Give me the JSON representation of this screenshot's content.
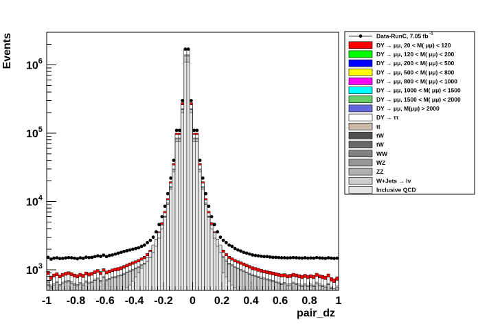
{
  "chart_data": {
    "type": "bar",
    "xlabel": "pair_dz",
    "ylabel": "Events",
    "xlim": [
      -1,
      1
    ],
    "ylim": [
      500,
      3000000
    ],
    "yscale": "log",
    "x_ticks": [
      "-1",
      "-0.8",
      "-0.6",
      "-0.4",
      "-0.2",
      "0",
      "0.2",
      "0.4",
      "0.6",
      "0.8",
      "1"
    ],
    "y_ticks": [
      {
        "base": "10",
        "exp": "3",
        "value": 1000
      },
      {
        "base": "10",
        "exp": "4",
        "value": 10000
      },
      {
        "base": "10",
        "exp": "5",
        "value": 100000
      },
      {
        "base": "10",
        "exp": "6",
        "value": 1000000
      }
    ],
    "legend_position": "right",
    "legend": [
      {
        "label": "Data-RunC, 7.05 fb",
        "sup": "-1",
        "kind": "marker",
        "color": "#000000"
      },
      {
        "label": "DY → μμ, 20 < M( μμ) <  120",
        "kind": "fill",
        "color": "#ff0000"
      },
      {
        "label": "DY → μμ, 120 < M( μμ) <  200",
        "kind": "fill",
        "color": "#00ff00"
      },
      {
        "label": "DY → μμ, 200 < M( μμ) <  500",
        "kind": "fill",
        "color": "#0000ff"
      },
      {
        "label": "DY → μμ, 500 < M( μμ) <  800",
        "kind": "fill",
        "color": "#ffff00"
      },
      {
        "label": "DY → μμ, 800 < M( μμ) < 1000",
        "kind": "fill",
        "color": "#ff00ff"
      },
      {
        "label": "DY → μμ, 1000 < M( μμ) < 1500",
        "kind": "fill",
        "color": "#00ffff"
      },
      {
        "label": "DY → μμ, 1500 < M( μμ) < 2000",
        "kind": "fill",
        "color": "#66cc66"
      },
      {
        "label": "DY → μμ, M(μμ) > 2000",
        "kind": "fill",
        "color": "#6666dd"
      },
      {
        "label": "DY → ττ",
        "kind": "fill",
        "color": "#ffffff"
      },
      {
        "label": "tt",
        "kind": "fill",
        "color": "#c8b8a8"
      },
      {
        "label": "tW",
        "kind": "fill",
        "color": "#505050"
      },
      {
        "label": "tW",
        "kind": "fill",
        "color": "#686868"
      },
      {
        "label": "WW",
        "kind": "fill",
        "color": "#808080"
      },
      {
        "label": "WZ",
        "kind": "fill",
        "color": "#989898"
      },
      {
        "label": "ZZ",
        "kind": "fill",
        "color": "#b0b0b0"
      },
      {
        "label": "W+Jets  → lν",
        "kind": "fill",
        "color": "#cccccc"
      },
      {
        "label": "Inclusive QCD",
        "kind": "fill",
        "color": "#e6e6e6"
      }
    ],
    "bin_edges": [
      -1.0,
      -0.98,
      -0.96,
      -0.94,
      -0.92,
      -0.9,
      -0.88,
      -0.86,
      -0.84,
      -0.82,
      -0.8,
      -0.78,
      -0.76,
      -0.74,
      -0.72,
      -0.7,
      -0.68,
      -0.66,
      -0.64,
      -0.62,
      -0.6,
      -0.58,
      -0.56,
      -0.54,
      -0.52,
      -0.5,
      -0.48,
      -0.46,
      -0.44,
      -0.42,
      -0.4,
      -0.38,
      -0.36,
      -0.34,
      -0.32,
      -0.3,
      -0.28,
      -0.26,
      -0.24,
      -0.22,
      -0.2,
      -0.18,
      -0.16,
      -0.14,
      -0.12,
      -0.1,
      -0.08,
      -0.06,
      -0.04,
      -0.02,
      0.0,
      0.02,
      0.04,
      0.06,
      0.08,
      0.1,
      0.12,
      0.14,
      0.16,
      0.18,
      0.2,
      0.22,
      0.24,
      0.26,
      0.28,
      0.3,
      0.32,
      0.34,
      0.36,
      0.38,
      0.4,
      0.42,
      0.44,
      0.46,
      0.48,
      0.5,
      0.52,
      0.54,
      0.56,
      0.58,
      0.6,
      0.62,
      0.64,
      0.66,
      0.68,
      0.7,
      0.72,
      0.74,
      0.76,
      0.78,
      0.8,
      0.82,
      0.84,
      0.86,
      0.88,
      0.9,
      0.92,
      0.94,
      0.96,
      0.98,
      1.0
    ],
    "data": [
      1520,
      1430,
      1480,
      1500,
      1460,
      1470,
      1490,
      1510,
      1500,
      1480,
      1450,
      1500,
      1470,
      1530,
      1510,
      1520,
      1560,
      1600,
      1570,
      1640,
      1560,
      1620,
      1650,
      1700,
      1750,
      1800,
      1860,
      1900,
      1950,
      2000,
      2050,
      2100,
      2200,
      2300,
      2500,
      2700,
      3000,
      3600,
      4600,
      6000,
      8500,
      13000,
      22000,
      40000,
      110000,
      110000,
      300000,
      1700000,
      1700000,
      300000,
      110000,
      110000,
      40000,
      22000,
      13000,
      8500,
      6000,
      4600,
      3600,
      3000,
      2700,
      2500,
      2300,
      2200,
      2050,
      1950,
      1880,
      1800,
      1750,
      1700,
      1650,
      1620,
      1600,
      1580,
      1560,
      1560,
      1540,
      1520,
      1520,
      1510,
      1500,
      1500,
      1490,
      1500,
      1510,
      1500,
      1490,
      1480,
      1500,
      1480,
      1490,
      1480,
      1510,
      1490,
      1480,
      1470,
      1500,
      1480,
      1470,
      1480
    ],
    "mc_dy": [
      850,
      720,
      780,
      820,
      760,
      800,
      830,
      850,
      820,
      780,
      760,
      800,
      770,
      840,
      810,
      830,
      880,
      920,
      850,
      950,
      870,
      900,
      940,
      960,
      970,
      1000,
      1050,
      1100,
      1150,
      1200,
      1250,
      1300,
      1380,
      1450,
      1600,
      1800,
      2100,
      2600,
      3400,
      4600,
      6800,
      10500,
      18500,
      34000,
      95000,
      95000,
      260000,
      1650000,
      1650000,
      260000,
      95000,
      95000,
      34000,
      18500,
      10500,
      6800,
      4600,
      3400,
      2600,
      2100,
      1800,
      1600,
      1450,
      1380,
      1300,
      1250,
      1200,
      1150,
      1100,
      1050,
      1000,
      980,
      950,
      920,
      900,
      880,
      860,
      840,
      820,
      800,
      780,
      790,
      760,
      770,
      800,
      780,
      760,
      740,
      770,
      740,
      760,
      740,
      800,
      760,
      740,
      720,
      780,
      680,
      650,
      700
    ],
    "mc_total": [
      950,
      810,
      870,
      910,
      840,
      890,
      920,
      940,
      910,
      870,
      850,
      890,
      860,
      930,
      900,
      920,
      970,
      1010,
      940,
      1040,
      960,
      990,
      1030,
      1060,
      1080,
      1110,
      1160,
      1210,
      1260,
      1310,
      1360,
      1420,
      1500,
      1580,
      1740,
      1950,
      2250,
      2800,
      3600,
      4900,
      7200,
      11000,
      19500,
      36000,
      100000,
      100000,
      280000,
      1700000,
      1700000,
      280000,
      100000,
      100000,
      36000,
      19500,
      11000,
      7200,
      4900,
      3600,
      2800,
      2250,
      1950,
      1740,
      1580,
      1500,
      1420,
      1360,
      1310,
      1260,
      1210,
      1160,
      1110,
      1080,
      1050,
      1020,
      990,
      970,
      950,
      930,
      910,
      890,
      870,
      880,
      850,
      860,
      890,
      870,
      850,
      830,
      860,
      830,
      850,
      830,
      890,
      850,
      830,
      810,
      870,
      770,
      740,
      790
    ],
    "mc_dytautau": [
      700,
      570,
      630,
      680,
      610,
      660,
      690,
      700,
      670,
      630,
      610,
      650,
      620,
      690,
      660,
      680,
      730,
      760,
      700,
      800,
      720,
      750,
      790,
      800,
      820,
      850,
      890,
      930,
      980,
      1020,
      1070,
      1120,
      1190,
      1250,
      1390,
      1570,
      1850,
      2300,
      3000,
      4100,
      6100,
      9500,
      16500,
      30000,
      85000,
      85000,
      230000,
      1400000,
      1400000,
      230000,
      85000,
      85000,
      30000,
      16500,
      9500,
      6100,
      4100,
      3000,
      2300,
      1850,
      1570,
      1390,
      1250,
      1190,
      1120,
      1070,
      1020,
      980,
      930,
      890,
      850,
      830,
      800,
      780,
      760,
      740,
      720,
      700,
      680,
      660,
      640,
      650,
      620,
      630,
      660,
      640,
      620,
      600,
      630,
      600,
      620,
      600,
      660,
      620,
      600,
      580,
      640,
      560,
      530,
      580
    ],
    "mc_wjets": [
      660,
      540,
      600,
      650,
      580,
      630,
      660,
      670,
      640,
      600,
      580,
      620,
      590,
      660,
      630,
      650,
      700,
      730,
      670,
      770,
      690,
      720,
      760,
      770,
      790,
      820,
      860,
      900,
      940,
      980,
      1030,
      1080,
      1150,
      1210,
      1340,
      1520,
      1790,
      2230,
      2900,
      3950,
      5900,
      9200,
      16000,
      29000,
      82000,
      82000,
      222000,
      1350000,
      1350000,
      222000,
      82000,
      82000,
      29000,
      16000,
      9200,
      5900,
      3950,
      2900,
      2230,
      1790,
      1520,
      1340,
      1210,
      1150,
      1080,
      1030,
      980,
      940,
      900,
      860,
      820,
      800,
      770,
      750,
      730,
      710,
      690,
      670,
      650,
      630,
      610,
      620,
      590,
      600,
      630,
      610,
      590,
      570,
      600,
      570,
      590,
      570,
      630,
      590,
      570,
      550,
      610,
      530,
      500,
      550
    ],
    "mc_qcd": [
      400,
      420,
      400,
      410,
      420,
      400,
      410,
      420,
      400,
      410,
      420,
      410,
      400,
      420,
      410,
      400,
      420,
      410,
      400,
      420,
      410,
      420,
      430,
      440,
      450,
      470,
      500,
      540,
      600,
      680,
      780,
      900,
      1050,
      1250,
      1500,
      1850,
      2300,
      2800,
      3500,
      4500,
      6000,
      9000,
      15000,
      27000,
      75000,
      75000,
      200000,
      1100000,
      1100000,
      200000,
      75000,
      75000,
      27000,
      15000,
      9000,
      6000,
      4500,
      3500,
      2800,
      2300,
      900,
      780,
      680,
      600,
      540,
      500,
      470,
      450,
      440,
      430,
      420,
      420,
      410,
      410,
      400,
      410,
      400,
      410,
      400,
      410,
      400,
      410,
      400,
      410,
      400,
      410,
      400,
      410,
      400,
      410,
      400,
      410,
      400,
      410,
      400,
      410,
      400,
      410,
      400,
      410
    ]
  }
}
